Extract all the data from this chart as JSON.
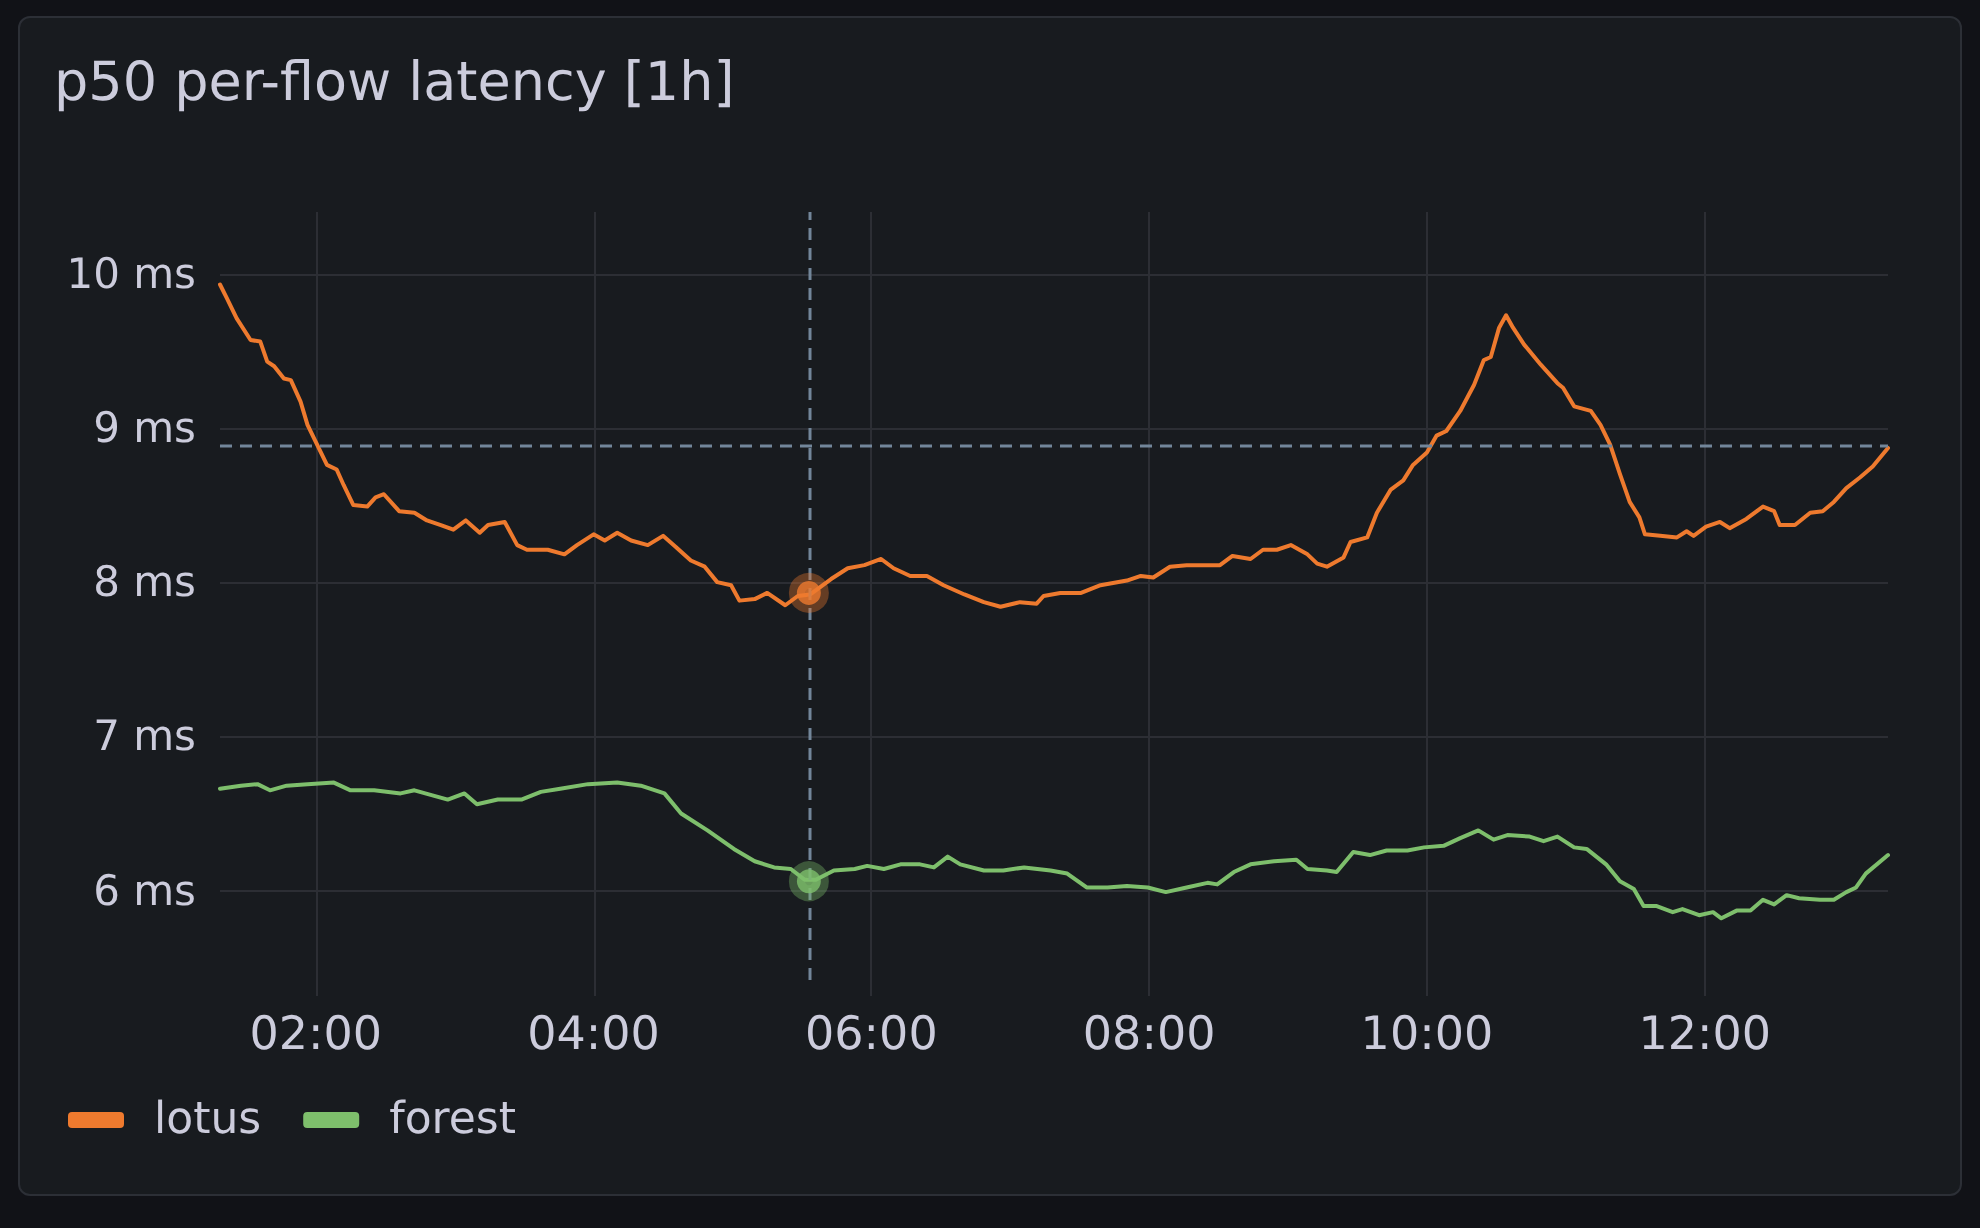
{
  "chart_data": {
    "type": "line",
    "title": "p50 per-flow latency [1h]",
    "xlim": [
      1.31,
      13.32
    ],
    "xticks": [
      {
        "value": 2,
        "label": "02:00"
      },
      {
        "value": 4,
        "label": "04:00"
      },
      {
        "value": 6,
        "label": "06:00"
      },
      {
        "value": 8,
        "label": "08:00"
      },
      {
        "value": 10,
        "label": "10:00"
      },
      {
        "value": 12,
        "label": "12:00"
      }
    ],
    "ylim": [
      5.42,
      10.4
    ],
    "yticks": [
      {
        "value": 6,
        "label": "6 ms"
      },
      {
        "value": 7,
        "label": "7 ms"
      },
      {
        "value": 8,
        "label": "8 ms"
      },
      {
        "value": 9,
        "label": "9 ms"
      },
      {
        "value": 10,
        "label": "10 ms"
      }
    ],
    "grid": true,
    "legend": "bottom left",
    "marker": "none",
    "series": [
      {
        "name": "lotus",
        "color": "#ee7a2e",
        "x": [
          1.31,
          1.36,
          1.43,
          1.53,
          1.6,
          1.65,
          1.7,
          1.77,
          1.82,
          1.89,
          1.94,
          2.01,
          2.08,
          2.15,
          2.2,
          2.27,
          2.37,
          2.43,
          2.49,
          2.6,
          2.71,
          2.8,
          2.9,
          2.99,
          3.08,
          3.18,
          3.24,
          3.36,
          3.45,
          3.52,
          3.67,
          3.79,
          3.88,
          4.0,
          4.08,
          4.17,
          4.27,
          4.39,
          4.5,
          4.59,
          4.7,
          4.8,
          4.89,
          4.99,
          5.05,
          5.16,
          5.25,
          5.38,
          5.47,
          5.56,
          5.71,
          5.83,
          5.95,
          6.07,
          6.16,
          6.28,
          6.4,
          6.52,
          6.67,
          6.81,
          6.93,
          7.07,
          7.19,
          7.24,
          7.36,
          7.51,
          7.65,
          7.84,
          7.94,
          8.03,
          8.15,
          8.27,
          8.42,
          8.51,
          8.6,
          8.73,
          8.82,
          8.92,
          9.02,
          9.14,
          9.21,
          9.28,
          9.4,
          9.45,
          9.57,
          9.64,
          9.74,
          9.83,
          9.9,
          10.0,
          10.07,
          10.14,
          10.24,
          10.34,
          10.41,
          10.46,
          10.52,
          10.57,
          10.62,
          10.7,
          10.82,
          10.94,
          10.98,
          11.06,
          11.18,
          11.25,
          11.32,
          11.39,
          11.46,
          11.53,
          11.57,
          11.68,
          11.8,
          11.87,
          11.92,
          12.01,
          12.11,
          12.18,
          12.3,
          12.42,
          12.5,
          12.54,
          12.65,
          12.76,
          12.85,
          12.93,
          13.02,
          13.12,
          13.21,
          13.32
        ],
        "values": [
          9.93,
          9.84,
          9.71,
          9.57,
          9.56,
          9.43,
          9.4,
          9.32,
          9.31,
          9.17,
          9.02,
          8.89,
          8.76,
          8.73,
          8.63,
          8.5,
          8.49,
          8.55,
          8.57,
          8.46,
          8.45,
          8.4,
          8.37,
          8.34,
          8.4,
          8.32,
          8.37,
          8.39,
          8.24,
          8.21,
          8.21,
          8.18,
          8.24,
          8.31,
          8.27,
          8.32,
          8.27,
          8.24,
          8.3,
          8.23,
          8.14,
          8.1,
          8.0,
          7.98,
          7.88,
          7.89,
          7.93,
          7.85,
          7.91,
          7.92,
          8.02,
          8.09,
          8.11,
          8.15,
          8.09,
          8.04,
          8.04,
          7.98,
          7.92,
          7.87,
          7.84,
          7.87,
          7.86,
          7.91,
          7.93,
          7.93,
          7.98,
          8.01,
          8.04,
          8.03,
          8.1,
          8.11,
          8.11,
          8.11,
          8.17,
          8.15,
          8.21,
          8.21,
          8.24,
          8.18,
          8.12,
          8.1,
          8.16,
          8.26,
          8.29,
          8.45,
          8.6,
          8.66,
          8.76,
          8.84,
          8.95,
          8.98,
          9.11,
          9.28,
          9.44,
          9.46,
          9.65,
          9.73,
          9.65,
          9.54,
          9.41,
          9.29,
          9.26,
          9.14,
          9.11,
          9.02,
          8.89,
          8.7,
          8.52,
          8.42,
          8.31,
          8.3,
          8.29,
          8.33,
          8.3,
          8.36,
          8.39,
          8.35,
          8.41,
          8.49,
          8.46,
          8.37,
          8.37,
          8.45,
          8.46,
          8.52,
          8.61,
          8.68,
          8.75,
          8.87
        ]
      },
      {
        "name": "forest",
        "color": "#7ebf6c",
        "x": [
          1.31,
          1.46,
          1.58,
          1.67,
          1.79,
          1.94,
          2.13,
          2.25,
          2.42,
          2.61,
          2.71,
          2.95,
          3.07,
          3.16,
          3.31,
          3.48,
          3.62,
          3.76,
          3.96,
          4.17,
          4.34,
          4.51,
          4.63,
          4.82,
          5.01,
          5.16,
          5.3,
          5.42,
          5.52,
          5.6,
          5.73,
          5.88,
          5.97,
          6.09,
          6.21,
          6.35,
          6.45,
          6.55,
          6.64,
          6.81,
          6.95,
          7.1,
          7.29,
          7.41,
          7.55,
          7.7,
          7.84,
          7.99,
          8.12,
          8.27,
          8.42,
          8.49,
          8.61,
          8.73,
          8.9,
          9.06,
          9.14,
          9.28,
          9.35,
          9.47,
          9.59,
          9.71,
          9.86,
          9.98,
          10.12,
          10.24,
          10.37,
          10.48,
          10.58,
          10.74,
          10.84,
          10.94,
          11.06,
          11.15,
          11.29,
          11.39,
          11.49,
          11.56,
          11.65,
          11.77,
          11.84,
          11.96,
          12.06,
          12.12,
          12.23,
          12.33,
          12.42,
          12.5,
          12.59,
          12.68,
          12.83,
          12.93,
          13.02,
          13.09,
          13.16,
          13.32
        ],
        "values": [
          6.66,
          6.68,
          6.69,
          6.65,
          6.68,
          6.69,
          6.7,
          6.65,
          6.65,
          6.63,
          6.65,
          6.59,
          6.63,
          6.56,
          6.59,
          6.59,
          6.64,
          6.66,
          6.69,
          6.7,
          6.68,
          6.63,
          6.5,
          6.39,
          6.27,
          6.19,
          6.15,
          6.14,
          6.07,
          6.07,
          6.13,
          6.14,
          6.16,
          6.14,
          6.17,
          6.17,
          6.15,
          6.22,
          6.17,
          6.13,
          6.13,
          6.15,
          6.13,
          6.11,
          6.02,
          6.02,
          6.03,
          6.02,
          5.99,
          6.02,
          6.05,
          6.04,
          6.12,
          6.17,
          6.19,
          6.2,
          6.14,
          6.13,
          6.12,
          6.25,
          6.23,
          6.26,
          6.26,
          6.28,
          6.29,
          6.34,
          6.39,
          6.33,
          6.36,
          6.35,
          6.32,
          6.35,
          6.28,
          6.27,
          6.17,
          6.06,
          6.01,
          5.9,
          5.9,
          5.86,
          5.88,
          5.84,
          5.86,
          5.82,
          5.87,
          5.87,
          5.94,
          5.91,
          5.97,
          5.95,
          5.94,
          5.94,
          5.99,
          6.02,
          6.11,
          6.23
        ]
      },
      {
        "type": "scatter",
        "color": "#ee7a2e",
        "marker": "circle",
        "x": [
          5.55
        ],
        "values": [
          7.93
        ]
      },
      {
        "type": "scatter",
        "color": "#7ebf6c",
        "marker": "circle",
        "x": [
          5.55
        ],
        "values": [
          6.06
        ]
      }
    ],
    "ref_lines": [
      {
        "axis": "x",
        "value": 5.55,
        "color": "#72869a",
        "line_style": "dashed"
      },
      {
        "axis": "y",
        "value": 8.89,
        "color": "#72869a",
        "line_style": "dashed"
      }
    ]
  }
}
